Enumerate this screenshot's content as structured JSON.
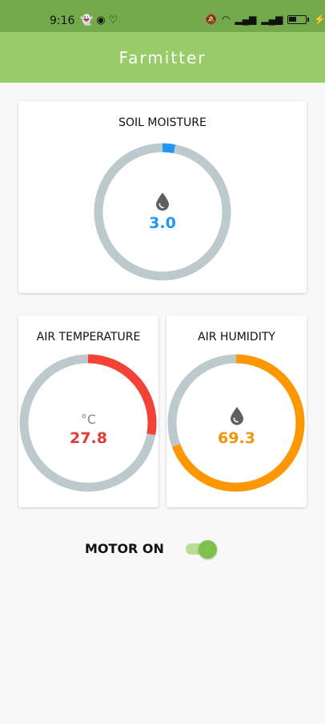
{
  "status_bar": {
    "time": "9:16",
    "left_icons": [
      "snapchat-icon",
      "mask-icon",
      "heart-monitor-icon"
    ],
    "right_icons": [
      "bell-muted-icon",
      "wifi-icon",
      "signal-icon",
      "signal-icon",
      "battery-icon",
      "charging-icon"
    ]
  },
  "app_bar": {
    "title": "Farmitter"
  },
  "soil_moisture": {
    "title": "SOIL MOISTURE",
    "value": "3.0",
    "fraction": 0.03,
    "color": "#2196f3",
    "icon": "water-drop-icon"
  },
  "air_temperature": {
    "title": "AIR TEMPERATURE",
    "value": "27.8",
    "unit": "°C",
    "fraction": 0.278,
    "color": "#f44336"
  },
  "air_humidity": {
    "title": "AIR HUMIDITY",
    "value": "69.3",
    "fraction": 0.693,
    "color": "#ff9800",
    "icon": "water-drop-icon"
  },
  "motor": {
    "label": "MOTOR ON",
    "on": true,
    "accent": "#7ec14b"
  },
  "colors": {
    "track": "#bcc9cd",
    "app_bar": "#98cc68",
    "status_bar": "#72a94a"
  }
}
